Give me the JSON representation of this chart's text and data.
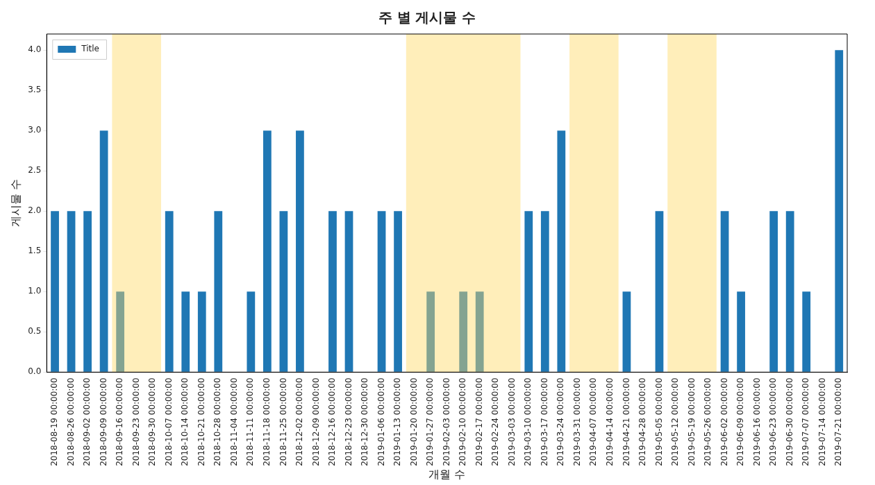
{
  "chart_data": {
    "type": "bar",
    "title": "주 별 게시물 수",
    "xlabel": "개월 수",
    "ylabel": "게시물 수",
    "categories": [
      "2018-08-19 00:00:00",
      "2018-08-26 00:00:00",
      "2018-09-02 00:00:00",
      "2018-09-09 00:00:00",
      "2018-09-16 00:00:00",
      "2018-09-23 00:00:00",
      "2018-09-30 00:00:00",
      "2018-10-07 00:00:00",
      "2018-10-14 00:00:00",
      "2018-10-21 00:00:00",
      "2018-10-28 00:00:00",
      "2018-11-04 00:00:00",
      "2018-11-11 00:00:00",
      "2018-11-18 00:00:00",
      "2018-11-25 00:00:00",
      "2018-12-02 00:00:00",
      "2018-12-09 00:00:00",
      "2018-12-16 00:00:00",
      "2018-12-23 00:00:00",
      "2018-12-30 00:00:00",
      "2019-01-06 00:00:00",
      "2019-01-13 00:00:00",
      "2019-01-20 00:00:00",
      "2019-01-27 00:00:00",
      "2019-02-03 00:00:00",
      "2019-02-10 00:00:00",
      "2019-02-17 00:00:00",
      "2019-02-24 00:00:00",
      "2019-03-03 00:00:00",
      "2019-03-10 00:00:00",
      "2019-03-17 00:00:00",
      "2019-03-24 00:00:00",
      "2019-03-31 00:00:00",
      "2019-04-07 00:00:00",
      "2019-04-14 00:00:00",
      "2019-04-21 00:00:00",
      "2019-04-28 00:00:00",
      "2019-05-05 00:00:00",
      "2019-05-12 00:00:00",
      "2019-05-19 00:00:00",
      "2019-05-26 00:00:00",
      "2019-06-02 00:00:00",
      "2019-06-09 00:00:00",
      "2019-06-16 00:00:00",
      "2019-06-23 00:00:00",
      "2019-06-30 00:00:00",
      "2019-07-07 00:00:00",
      "2019-07-14 00:00:00",
      "2019-07-21 00:00:00"
    ],
    "series": [
      {
        "name": "Title",
        "color": "#1f77b4",
        "values": [
          2,
          2,
          2,
          3,
          1,
          0,
          0,
          2,
          1,
          1,
          2,
          0,
          1,
          3,
          2,
          3,
          0,
          2,
          2,
          0,
          2,
          2,
          0,
          1,
          0,
          1,
          1,
          0,
          0,
          2,
          2,
          3,
          0,
          0,
          0,
          1,
          0,
          2,
          0,
          0,
          0,
          2,
          1,
          0,
          2,
          2,
          1,
          0,
          4
        ]
      }
    ],
    "ylim": [
      0,
      4.2
    ],
    "yticks": [
      {
        "value": 0,
        "label": "0.0"
      },
      {
        "value": 0.5,
        "label": "0.5"
      },
      {
        "value": 1,
        "label": "1.0"
      },
      {
        "value": 1.5,
        "label": "1.5"
      },
      {
        "value": 2,
        "label": "2.0"
      },
      {
        "value": 2.5,
        "label": "2.5"
      },
      {
        "value": 3,
        "label": "3.0"
      },
      {
        "value": 3.5,
        "label": "3.5"
      },
      {
        "value": 4,
        "label": "4.0"
      }
    ],
    "bands": [
      {
        "axis": "x",
        "from": "2018-09-16 00:00:00",
        "to": "2018-09-30 00:00:00",
        "color": "#ffd966"
      },
      {
        "axis": "x",
        "from": "2019-01-20 00:00:00",
        "to": "2019-03-03 00:00:00",
        "color": "#ffd966"
      },
      {
        "axis": "x",
        "from": "2019-03-31 00:00:00",
        "to": "2019-04-14 00:00:00",
        "color": "#ffd966"
      },
      {
        "axis": "x",
        "from": "2019-05-12 00:00:00",
        "to": "2019-05-26 00:00:00",
        "color": "#ffd966"
      }
    ],
    "legend": "top left",
    "grid": false
  }
}
